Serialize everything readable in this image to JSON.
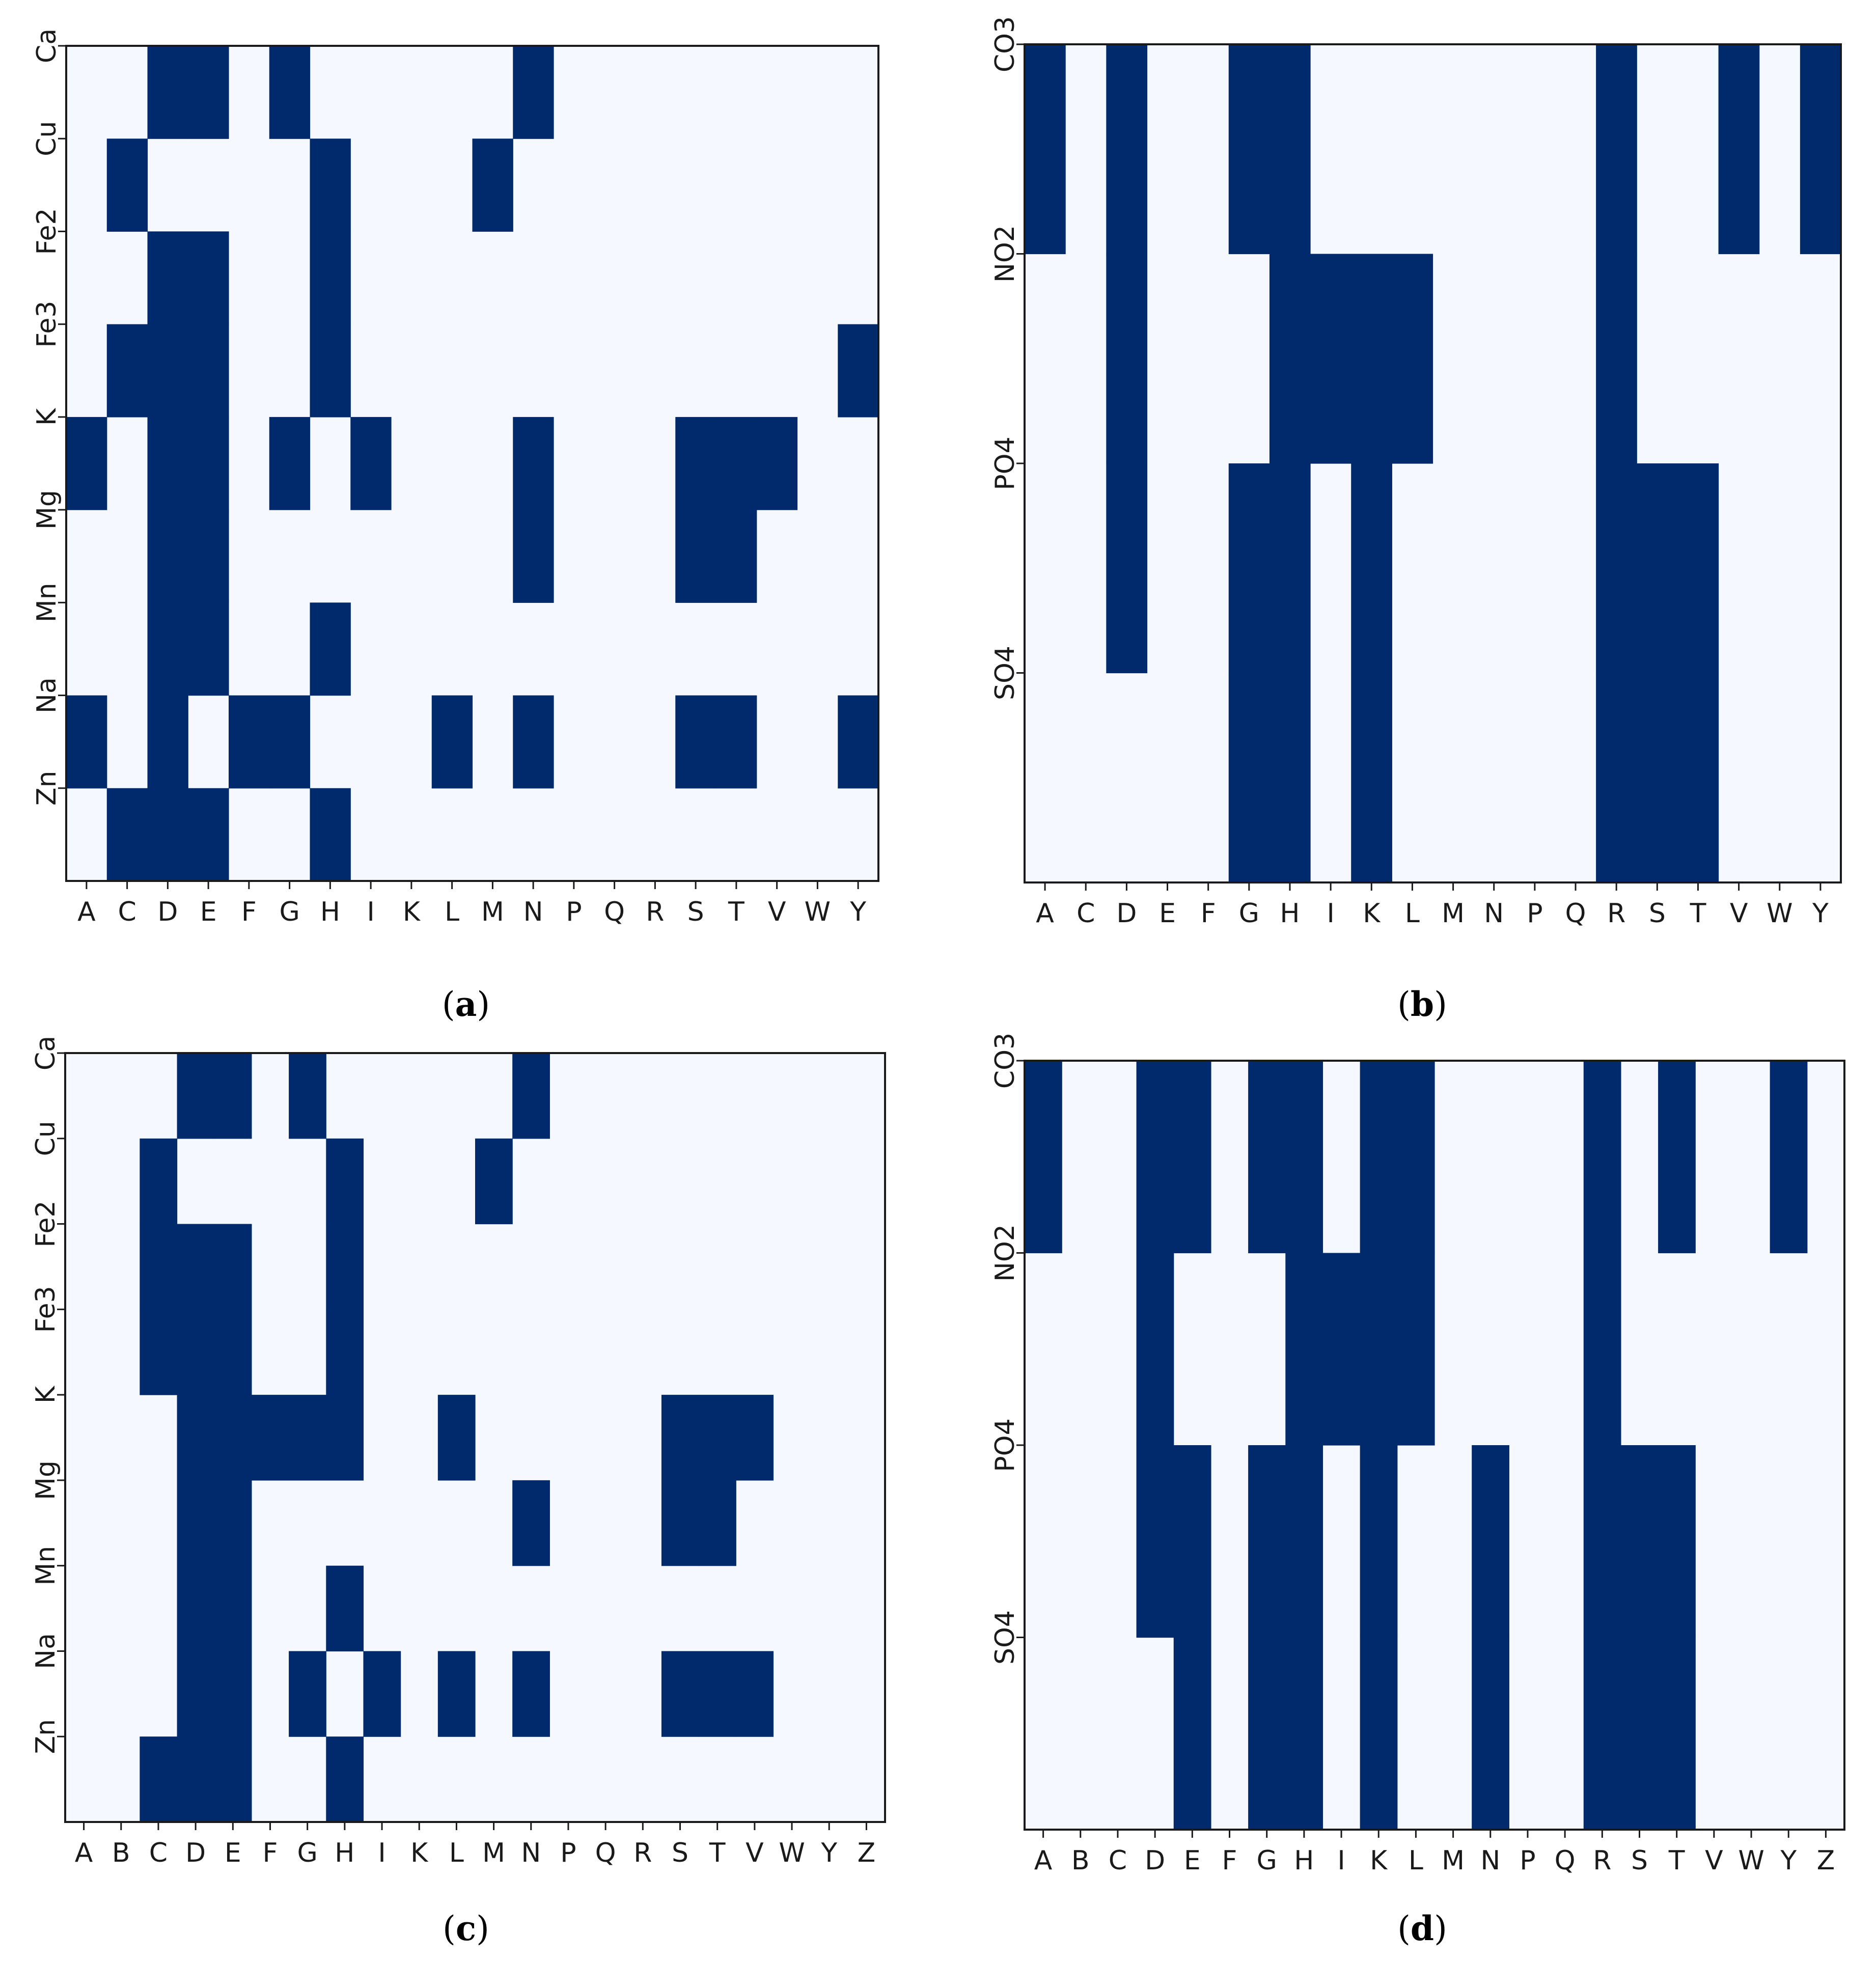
{
  "colors": {
    "filled": "#002a6c",
    "empty": "#f5f9ff",
    "frame": "#1a1a1a"
  },
  "chart_data": [
    {
      "type": "heatmap",
      "panel_label": "a",
      "x_categories": [
        "A",
        "C",
        "D",
        "E",
        "F",
        "G",
        "H",
        "I",
        "K",
        "L",
        "M",
        "N",
        "P",
        "Q",
        "R",
        "S",
        "T",
        "V",
        "W",
        "Y"
      ],
      "y_categories": [
        "Ca",
        "Cu",
        "Fe2",
        "Fe3",
        "K",
        "Mg",
        "Mn",
        "Na",
        "Zn"
      ],
      "n_cols": 20,
      "n_rows": 9,
      "value_range": [
        0,
        1
      ],
      "cells": [
        "00110100000100000000",
        "01000010001000000000",
        "00110010000000000000",
        "01110010000000000001",
        "10110101000100011100",
        "00110000000100011000",
        "00110010000000000000",
        "10101100010100011001",
        "01110010000000000000"
      ]
    },
    {
      "type": "heatmap",
      "panel_label": "b",
      "x_categories": [
        "A",
        "C",
        "D",
        "E",
        "F",
        "G",
        "H",
        "I",
        "K",
        "L",
        "M",
        "N",
        "P",
        "Q",
        "R",
        "S",
        "T",
        "V",
        "W",
        "Y"
      ],
      "y_categories": [
        "CO3",
        "NO2",
        "PO4",
        "SO4"
      ],
      "n_cols": 20,
      "n_rows": 4,
      "value_range": [
        0,
        1
      ],
      "cells": [
        "10100110000000100101",
        "00100011110000100000",
        "00100110100000111000",
        "00000110100000111000"
      ]
    },
    {
      "type": "heatmap",
      "panel_label": "c",
      "x_categories": [
        "A",
        "B",
        "C",
        "D",
        "E",
        "F",
        "G",
        "H",
        "I",
        "K",
        "L",
        "M",
        "N",
        "P",
        "Q",
        "R",
        "S",
        "T",
        "V",
        "W",
        "Y",
        "Z"
      ],
      "y_categories": [
        "Ca",
        "Cu",
        "Fe2",
        "Fe3",
        "K",
        "Mg",
        "Mn",
        "Na",
        "Zn"
      ],
      "n_cols": 22,
      "n_rows": 9,
      "value_range": [
        0,
        1
      ],
      "cells": [
        "0001101000001000000000",
        "0010000100010000000000",
        "0011100100000000000000",
        "0011100100000000000000",
        "0001111100100000111000",
        "0001100000001000110000",
        "0001100100000000000000",
        "0001101010101000111000",
        "0011100100000000000000"
      ]
    },
    {
      "type": "heatmap",
      "panel_label": "d",
      "x_categories": [
        "A",
        "B",
        "C",
        "D",
        "E",
        "F",
        "G",
        "H",
        "I",
        "K",
        "L",
        "M",
        "N",
        "P",
        "Q",
        "R",
        "S",
        "T",
        "V",
        "W",
        "Y",
        "Z"
      ],
      "y_categories": [
        "CO3",
        "NO2",
        "PO4",
        "SO4"
      ],
      "n_cols": 22,
      "n_rows": 4,
      "value_range": [
        0,
        1
      ],
      "cells": [
        "1001101101100001010010",
        "0001000111100001000000",
        "0001101101001001110000",
        "0000101101001001110000"
      ]
    }
  ]
}
